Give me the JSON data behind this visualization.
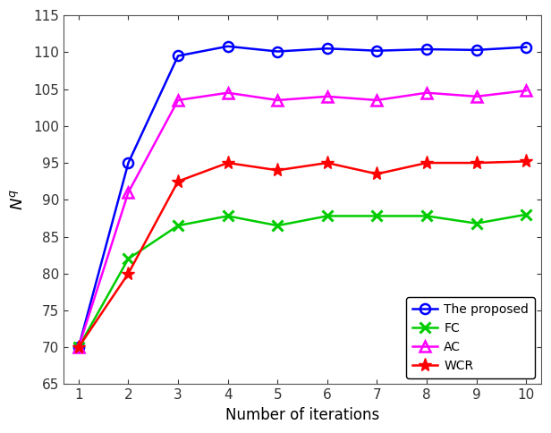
{
  "x": [
    1,
    2,
    3,
    4,
    5,
    6,
    7,
    8,
    9,
    10
  ],
  "proposed": [
    70,
    95,
    109.5,
    110.8,
    110.1,
    110.5,
    110.2,
    110.4,
    110.3,
    110.7
  ],
  "fc": [
    70,
    82,
    86.5,
    87.8,
    86.5,
    87.8,
    87.8,
    87.8,
    86.8,
    88.0
  ],
  "ac": [
    70,
    91,
    103.5,
    104.5,
    103.5,
    104.0,
    103.5,
    104.5,
    104.0,
    104.8
  ],
  "wcr": [
    70,
    80,
    92.5,
    95.0,
    94.0,
    95.0,
    93.5,
    95.0,
    95.0,
    95.2
  ],
  "proposed_color": "#0000FF",
  "fc_color": "#00CC00",
  "ac_color": "#FF00FF",
  "wcr_color": "#FF0000",
  "xlabel": "Number of iterations",
  "ylabel": "$N^q$",
  "xlim_min": 0.7,
  "xlim_max": 10.3,
  "ylim": [
    65,
    115
  ],
  "yticks": [
    65,
    70,
    75,
    80,
    85,
    90,
    95,
    100,
    105,
    110,
    115
  ],
  "xticks": [
    1,
    2,
    3,
    4,
    5,
    6,
    7,
    8,
    9,
    10
  ],
  "legend_labels": [
    "The proposed",
    "FC",
    "AC",
    "WCR"
  ],
  "legend_loc": "lower right",
  "linewidth": 1.8,
  "markersize_circle": 8,
  "markersize_x": 9,
  "markersize_tri": 8,
  "markersize_star": 11
}
